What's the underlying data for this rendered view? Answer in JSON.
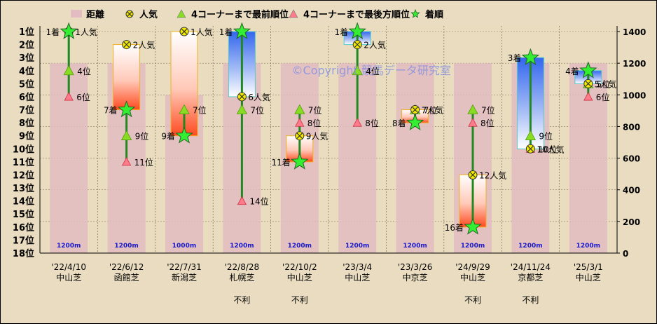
{
  "chart_data": {
    "type": "bar",
    "watermark": "©Copyright 競馬データ研究室",
    "legend": {
      "placement": "top",
      "items": [
        {
          "key": "distance",
          "label": "距離",
          "marker": "bar",
          "color": "#e2bcc0"
        },
        {
          "key": "popularity",
          "label": "人気",
          "marker": "circle-x",
          "color": "#f2ea00"
        },
        {
          "key": "front",
          "label": "4コーナーまで最前順位",
          "marker": "triangle",
          "color": "#88dd22"
        },
        {
          "key": "rear",
          "label": "4コーナーまで最後方順位",
          "marker": "triangle",
          "color": "#ff7a8a"
        },
        {
          "key": "finish",
          "label": "着順",
          "marker": "star",
          "color": "#33ee33"
        }
      ]
    },
    "y_left": {
      "ticks": [
        "1位",
        "2位",
        "3位",
        "4位",
        "5位",
        "6位",
        "7位",
        "8位",
        "9位",
        "10位",
        "11位",
        "12位",
        "13位",
        "14位",
        "15位",
        "16位",
        "17位",
        "18位"
      ],
      "min": 1,
      "max": 18
    },
    "y_right": {
      "ticks": [
        "0",
        "200",
        "400",
        "600",
        "800",
        "1000",
        "1200",
        "1400"
      ],
      "min": 0,
      "max": 1400
    },
    "races": [
      {
        "date": "'22/4/10",
        "course": "中山芝",
        "distance": 1200,
        "distance_label": "1200m",
        "popularity": 1,
        "popularity_label": "1人気",
        "front": 4,
        "front_label": "4位",
        "rear": 6,
        "rear_label": "6位",
        "finish": 1,
        "finish_label": "1着",
        "box": "green",
        "note": ""
      },
      {
        "date": "'22/6/12",
        "course": "函館芝",
        "distance": 1200,
        "distance_label": "1200m",
        "popularity": 2,
        "popularity_label": "2人気",
        "front": 9,
        "front_label": "9位",
        "rear": 11,
        "rear_label": "11位",
        "finish": 7,
        "finish_label": "7着",
        "box": "red",
        "note": ""
      },
      {
        "date": "'22/7/31",
        "course": "新潟芝",
        "distance": 1000,
        "distance_label": "1000m",
        "popularity": 1,
        "popularity_label": "1人気",
        "front": 7,
        "front_label": "7位",
        "rear": 7,
        "rear_label": "",
        "finish": 9,
        "finish_label": "9着",
        "box": "red",
        "note": ""
      },
      {
        "date": "'22/8/28",
        "course": "札幌芝",
        "distance": 1200,
        "distance_label": "1200m",
        "popularity": 6,
        "popularity_label": "6人気",
        "front": 7,
        "front_label": "7位",
        "rear": 14,
        "rear_label": "14位",
        "finish": 1,
        "finish_label": "1着",
        "box": "blue",
        "note": "不利"
      },
      {
        "date": "'22/10/2",
        "course": "中山芝",
        "distance": 1200,
        "distance_label": "1200m",
        "popularity": 9,
        "popularity_label": "9人気",
        "front": 7,
        "front_label": "7位",
        "rear": 8,
        "rear_label": "8位",
        "finish": 11,
        "finish_label": "11着",
        "box": "red",
        "note": "不利"
      },
      {
        "date": "'23/3/4",
        "course": "中山芝",
        "distance": 1200,
        "distance_label": "1200m",
        "popularity": 2,
        "popularity_label": "2人気",
        "front": 4,
        "front_label": "4位",
        "rear": 8,
        "rear_label": "8位",
        "finish": 1,
        "finish_label": "1着",
        "box": "blue",
        "note": ""
      },
      {
        "date": "'23/3/26",
        "course": "中京芝",
        "distance": 1200,
        "distance_label": "1200m",
        "popularity": 7,
        "popularity_label": "7人気",
        "front": 7,
        "front_label": "7位",
        "rear": 7,
        "rear_label": "",
        "finish": 8,
        "finish_label": "8着",
        "box": "red",
        "note": ""
      },
      {
        "date": "'24/9/29",
        "course": "中山芝",
        "distance": 1200,
        "distance_label": "1200m",
        "popularity": 12,
        "popularity_label": "12人気",
        "front": 7,
        "front_label": "7位",
        "rear": 8,
        "rear_label": "8位",
        "finish": 16,
        "finish_label": "16着",
        "box": "red",
        "note": "不利"
      },
      {
        "date": "'24/11/24",
        "course": "京都芝",
        "distance": 1200,
        "distance_label": "1200m",
        "popularity": 10,
        "popularity_label": "10人気",
        "front": 9,
        "front_label": "9位",
        "rear": 10,
        "rear_label": "10位",
        "finish": 3,
        "finish_label": "3着",
        "box": "blue",
        "note": "不利"
      },
      {
        "date": "'25/3/1",
        "course": "中山芝",
        "distance": 1200,
        "distance_label": "1200m",
        "popularity": 5,
        "popularity_label": "5人気",
        "front": 5,
        "front_label": "5位",
        "rear": 6,
        "rear_label": "6位",
        "finish": 4,
        "finish_label": "4着",
        "box": "blue",
        "note": ""
      }
    ]
  }
}
